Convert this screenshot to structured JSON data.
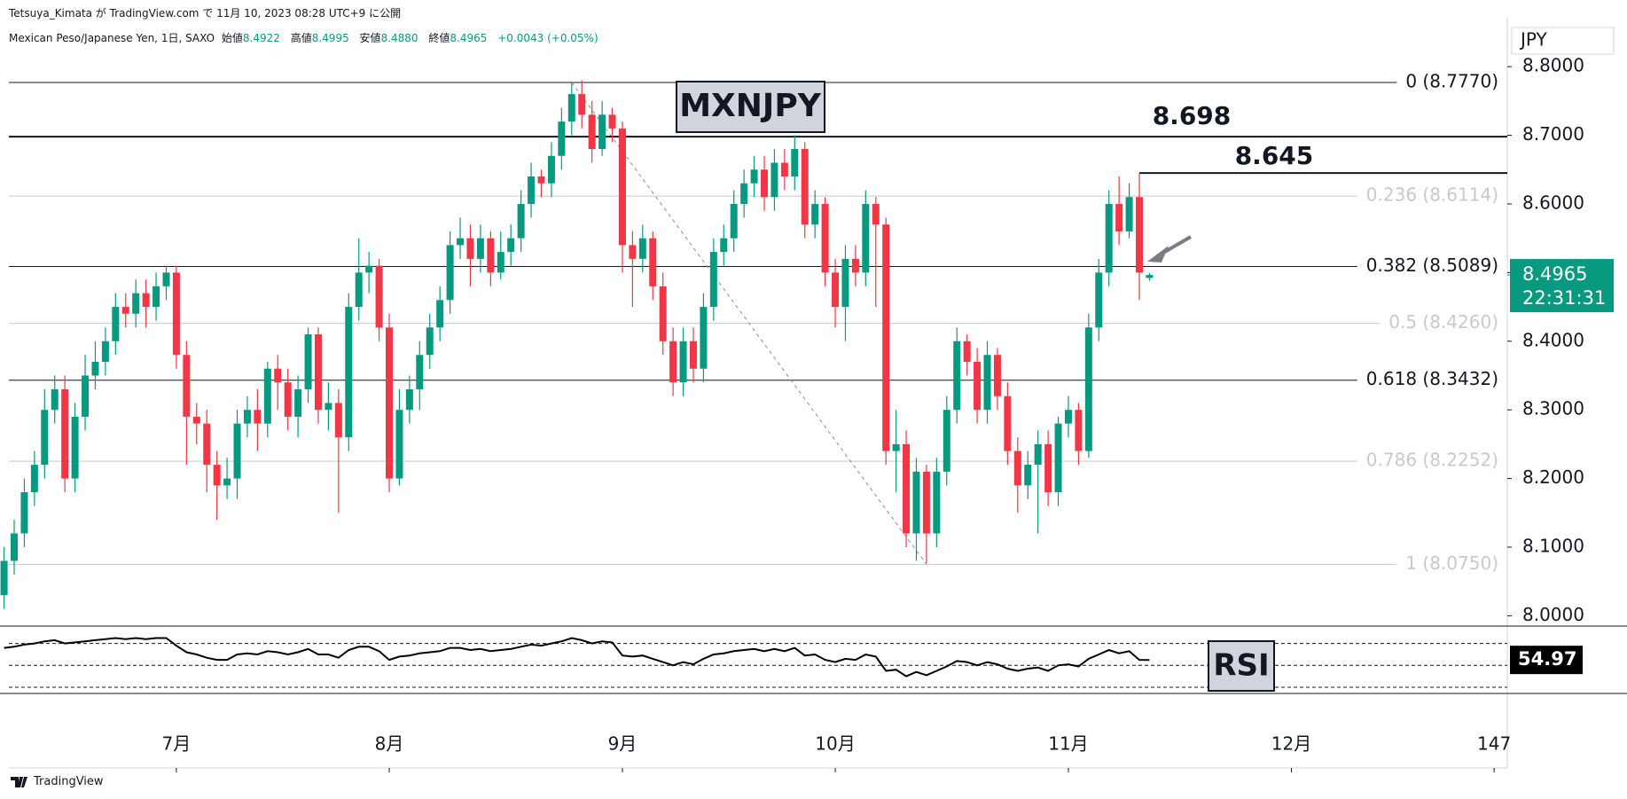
{
  "header": {
    "published": "Tetsuya_Kimata が TradingView.com で 11月 10, 2023 08:28 UTC+9 に公開",
    "symbol": "Mexican Peso/Japanese Yen, 1日, SAXO",
    "ohlc": [
      {
        "label": "始値",
        "value": "8.4922"
      },
      {
        "label": "高値",
        "value": "8.4995"
      },
      {
        "label": "安値",
        "value": "8.4880"
      },
      {
        "label": "終値",
        "value": "8.4965"
      }
    ],
    "change": "+0.0043 (+0.05%)"
  },
  "chart_data": {
    "type": "candlestick",
    "title": "MXNJPY",
    "currency": "JPY",
    "colors": {
      "up": "#089981",
      "down": "#f23645"
    },
    "ohlc": [
      [
        8.03,
        8.1,
        8.01,
        8.08
      ],
      [
        8.08,
        8.14,
        8.06,
        8.12
      ],
      [
        8.12,
        8.2,
        8.1,
        8.18
      ],
      [
        8.18,
        8.24,
        8.16,
        8.22
      ],
      [
        8.22,
        8.33,
        8.2,
        8.3
      ],
      [
        8.3,
        8.35,
        8.28,
        8.33
      ],
      [
        8.33,
        8.35,
        8.18,
        8.2
      ],
      [
        8.2,
        8.31,
        8.18,
        8.29
      ],
      [
        8.29,
        8.38,
        8.27,
        8.35
      ],
      [
        8.35,
        8.4,
        8.33,
        8.37
      ],
      [
        8.37,
        8.42,
        8.35,
        8.4
      ],
      [
        8.4,
        8.47,
        8.38,
        8.45
      ],
      [
        8.45,
        8.47,
        8.42,
        8.44
      ],
      [
        8.44,
        8.49,
        8.42,
        8.47
      ],
      [
        8.47,
        8.49,
        8.42,
        8.45
      ],
      [
        8.45,
        8.5,
        8.43,
        8.48
      ],
      [
        8.48,
        8.51,
        8.46,
        8.5
      ],
      [
        8.5,
        8.51,
        8.36,
        8.38
      ],
      [
        8.38,
        8.4,
        8.22,
        8.29
      ],
      [
        8.29,
        8.31,
        8.25,
        8.28
      ],
      [
        8.28,
        8.3,
        8.18,
        8.22
      ],
      [
        8.22,
        8.24,
        8.14,
        8.19
      ],
      [
        8.19,
        8.23,
        8.17,
        8.2
      ],
      [
        8.2,
        8.3,
        8.17,
        8.28
      ],
      [
        8.28,
        8.32,
        8.26,
        8.3
      ],
      [
        8.3,
        8.33,
        8.24,
        8.28
      ],
      [
        8.28,
        8.37,
        8.26,
        8.36
      ],
      [
        8.36,
        8.38,
        8.3,
        8.34
      ],
      [
        8.34,
        8.36,
        8.27,
        8.29
      ],
      [
        8.29,
        8.35,
        8.26,
        8.33
      ],
      [
        8.33,
        8.42,
        8.31,
        8.41
      ],
      [
        8.41,
        8.42,
        8.28,
        8.3
      ],
      [
        8.3,
        8.34,
        8.27,
        8.31
      ],
      [
        8.31,
        8.33,
        8.15,
        8.26
      ],
      [
        8.26,
        8.47,
        8.24,
        8.45
      ],
      [
        8.45,
        8.55,
        8.43,
        8.5
      ],
      [
        8.5,
        8.53,
        8.47,
        8.51
      ],
      [
        8.51,
        8.52,
        8.4,
        8.42
      ],
      [
        8.42,
        8.44,
        8.18,
        8.2
      ],
      [
        8.2,
        8.33,
        8.19,
        8.3
      ],
      [
        8.3,
        8.35,
        8.28,
        8.33
      ],
      [
        8.33,
        8.4,
        8.3,
        8.38
      ],
      [
        8.38,
        8.44,
        8.36,
        8.42
      ],
      [
        8.42,
        8.48,
        8.4,
        8.46
      ],
      [
        8.46,
        8.56,
        8.44,
        8.54
      ],
      [
        8.54,
        8.58,
        8.52,
        8.55
      ],
      [
        8.55,
        8.57,
        8.48,
        8.52
      ],
      [
        8.52,
        8.57,
        8.5,
        8.55
      ],
      [
        8.55,
        8.56,
        8.48,
        8.5
      ],
      [
        8.5,
        8.56,
        8.49,
        8.53
      ],
      [
        8.53,
        8.57,
        8.51,
        8.55
      ],
      [
        8.55,
        8.62,
        8.53,
        8.6
      ],
      [
        8.6,
        8.66,
        8.58,
        8.64
      ],
      [
        8.64,
        8.65,
        8.61,
        8.63
      ],
      [
        8.63,
        8.69,
        8.61,
        8.67
      ],
      [
        8.67,
        8.74,
        8.65,
        8.72
      ],
      [
        8.72,
        8.777,
        8.7,
        8.76
      ],
      [
        8.76,
        8.78,
        8.71,
        8.73
      ],
      [
        8.73,
        8.75,
        8.66,
        8.68
      ],
      [
        8.68,
        8.75,
        8.67,
        8.73
      ],
      [
        8.73,
        8.74,
        8.69,
        8.71
      ],
      [
        8.71,
        8.72,
        8.5,
        8.54
      ],
      [
        8.54,
        8.56,
        8.45,
        8.52
      ],
      [
        8.52,
        8.57,
        8.5,
        8.55
      ],
      [
        8.55,
        8.56,
        8.46,
        8.48
      ],
      [
        8.48,
        8.5,
        8.38,
        8.4
      ],
      [
        8.4,
        8.42,
        8.32,
        8.34
      ],
      [
        8.34,
        8.42,
        8.32,
        8.4
      ],
      [
        8.4,
        8.42,
        8.34,
        8.36
      ],
      [
        8.36,
        8.47,
        8.34,
        8.45
      ],
      [
        8.45,
        8.55,
        8.43,
        8.53
      ],
      [
        8.53,
        8.57,
        8.51,
        8.55
      ],
      [
        8.55,
        8.62,
        8.53,
        8.6
      ],
      [
        8.6,
        8.65,
        8.58,
        8.63
      ],
      [
        8.63,
        8.67,
        8.61,
        8.65
      ],
      [
        8.65,
        8.67,
        8.59,
        8.61
      ],
      [
        8.61,
        8.68,
        8.59,
        8.66
      ],
      [
        8.66,
        8.68,
        8.62,
        8.64
      ],
      [
        8.64,
        8.7,
        8.62,
        8.68
      ],
      [
        8.68,
        8.69,
        8.55,
        8.57
      ],
      [
        8.57,
        8.62,
        8.55,
        8.6
      ],
      [
        8.6,
        8.61,
        8.48,
        8.5
      ],
      [
        8.5,
        8.52,
        8.42,
        8.45
      ],
      [
        8.45,
        8.54,
        8.4,
        8.52
      ],
      [
        8.52,
        8.54,
        8.48,
        8.5
      ],
      [
        8.5,
        8.62,
        8.48,
        8.6
      ],
      [
        8.6,
        8.61,
        8.45,
        8.57
      ],
      [
        8.57,
        8.58,
        8.22,
        8.24
      ],
      [
        8.24,
        8.3,
        8.18,
        8.25
      ],
      [
        8.25,
        8.27,
        8.1,
        8.12
      ],
      [
        8.12,
        8.23,
        8.08,
        8.21
      ],
      [
        8.21,
        8.22,
        8.077,
        8.12
      ],
      [
        8.12,
        8.23,
        8.1,
        8.21
      ],
      [
        8.21,
        8.32,
        8.19,
        8.3
      ],
      [
        8.3,
        8.42,
        8.28,
        8.4
      ],
      [
        8.4,
        8.41,
        8.35,
        8.37
      ],
      [
        8.37,
        8.39,
        8.28,
        8.3
      ],
      [
        8.3,
        8.4,
        8.28,
        8.38
      ],
      [
        8.38,
        8.39,
        8.3,
        8.32
      ],
      [
        8.32,
        8.34,
        8.22,
        8.24
      ],
      [
        8.24,
        8.26,
        8.15,
        8.19
      ],
      [
        8.19,
        8.24,
        8.17,
        8.22
      ],
      [
        8.22,
        8.27,
        8.12,
        8.25
      ],
      [
        8.25,
        8.27,
        8.16,
        8.18
      ],
      [
        8.18,
        8.29,
        8.16,
        8.28
      ],
      [
        8.28,
        8.32,
        8.26,
        8.3
      ],
      [
        8.3,
        8.31,
        8.22,
        8.24
      ],
      [
        8.24,
        8.44,
        8.23,
        8.42
      ],
      [
        8.42,
        8.52,
        8.4,
        8.5
      ],
      [
        8.5,
        8.62,
        8.48,
        8.6
      ],
      [
        8.6,
        8.64,
        8.54,
        8.56
      ],
      [
        8.56,
        8.63,
        8.55,
        8.61
      ],
      [
        8.61,
        8.645,
        8.46,
        8.5
      ],
      [
        8.4922,
        8.4995,
        8.488,
        8.4965
      ]
    ],
    "xlim": [
      -0.4,
      148.3
    ],
    "xticks": [
      {
        "value": 17,
        "label": "7月"
      },
      {
        "value": 38,
        "label": "8月"
      },
      {
        "value": 61,
        "label": "9月"
      },
      {
        "value": 82,
        "label": "10月"
      },
      {
        "value": 105,
        "label": "11月"
      },
      {
        "value": 127,
        "label": "12月"
      },
      147
    ],
    "ylim": [
      7.985,
      8.8635
    ],
    "yticks": [
      {
        "value": 8.0,
        "label": "8.0000"
      },
      {
        "value": 8.1,
        "label": "8.1000"
      },
      {
        "value": 8.2,
        "label": "8.2000"
      },
      {
        "value": 8.3,
        "label": "8.3000"
      },
      {
        "value": 8.4,
        "label": "8.4000"
      },
      {
        "value": 8.5,
        "label": "8.5000"
      },
      {
        "value": 8.6,
        "label": "8.6000"
      },
      {
        "value": 8.7,
        "label": "8.7000"
      },
      {
        "value": 8.8,
        "label": "8.8000"
      }
    ],
    "fib_levels": [
      {
        "value": 8.777,
        "label": "0 (8.7770)",
        "strong": true
      },
      {
        "value": 8.6114,
        "label": "0.236 (8.6114)",
        "strong": false
      },
      {
        "value": 8.5089,
        "label": "0.382 (8.5089)",
        "strong": true
      },
      {
        "value": 8.426,
        "label": "0.5 (8.4260)",
        "strong": false
      },
      {
        "value": 8.3432,
        "label": "0.618 (8.3432)",
        "strong": true
      },
      {
        "value": 8.2252,
        "label": "0.786 (8.2252)",
        "strong": false
      },
      {
        "value": 8.075,
        "label": "1 (8.0750)",
        "strong": false
      }
    ],
    "levels": [
      8.698,
      8.645
    ],
    "last_price": {
      "value": 8.4965,
      "countdown": "22:31:31"
    },
    "rsi": {
      "name": "RSI",
      "color": "#000000",
      "ylim": [
        24.3,
        84.3
      ],
      "levels": [
        70,
        50,
        30
      ],
      "last": 54.97,
      "values": [
        66,
        67,
        69,
        70,
        72,
        73,
        70,
        71,
        72,
        73,
        74,
        75,
        74,
        75,
        74,
        75,
        75,
        68,
        62,
        60,
        57,
        55,
        55,
        60,
        61,
        60,
        63,
        62,
        60,
        62,
        65,
        60,
        60,
        57,
        64,
        67,
        67,
        63,
        55,
        58,
        59,
        61,
        62,
        63,
        66,
        66,
        64,
        65,
        63,
        64,
        65,
        67,
        69,
        68,
        70,
        72,
        75,
        73,
        70,
        72,
        71,
        59,
        58,
        59,
        56,
        53,
        50,
        53,
        51,
        56,
        60,
        61,
        63,
        64,
        65,
        63,
        65,
        63,
        66,
        59,
        60,
        55,
        53,
        56,
        55,
        60,
        58,
        45,
        46,
        40,
        44,
        41,
        45,
        49,
        54,
        53,
        50,
        53,
        51,
        47,
        45,
        47,
        48,
        45,
        50,
        51,
        49,
        56,
        60,
        64,
        61,
        63,
        55,
        54.97
      ]
    }
  },
  "footer": {
    "brand": "TradingView"
  }
}
